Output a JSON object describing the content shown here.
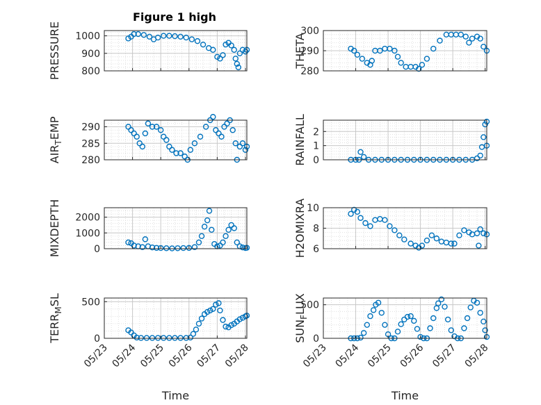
{
  "figure_title": "Figure 1 high",
  "xlabel": "Time",
  "x_ticks": [
    "05/23",
    "05/24",
    "05/25",
    "05/26",
    "05/27",
    "05/28"
  ],
  "chart_data": [
    {
      "type": "scatter",
      "ylabel": "PRESSURE",
      "yticks": [
        800,
        900,
        1000
      ],
      "ylim": [
        800,
        1030
      ],
      "grid": true,
      "minor_grid": true,
      "points": [
        [
          0.85,
          985
        ],
        [
          0.95,
          995
        ],
        [
          1.05,
          1010
        ],
        [
          1.2,
          1010
        ],
        [
          1.4,
          1005
        ],
        [
          1.6,
          995
        ],
        [
          1.75,
          980
        ],
        [
          1.9,
          990
        ],
        [
          2.1,
          1000
        ],
        [
          2.3,
          1000
        ],
        [
          2.5,
          998
        ],
        [
          2.7,
          995
        ],
        [
          2.9,
          990
        ],
        [
          3.1,
          980
        ],
        [
          3.3,
          970
        ],
        [
          3.5,
          950
        ],
        [
          3.7,
          930
        ],
        [
          3.85,
          920
        ],
        [
          4.0,
          880
        ],
        [
          4.1,
          870
        ],
        [
          4.2,
          890
        ],
        [
          4.3,
          950
        ],
        [
          4.4,
          960
        ],
        [
          4.5,
          945
        ],
        [
          4.6,
          920
        ],
        [
          4.65,
          870
        ],
        [
          4.7,
          840
        ],
        [
          4.75,
          820
        ],
        [
          4.8,
          900
        ],
        [
          4.9,
          920
        ],
        [
          5.0,
          910
        ],
        [
          5.05,
          920
        ]
      ]
    },
    {
      "type": "scatter",
      "ylabel": "THETA",
      "yticks": [
        280,
        290,
        300
      ],
      "ylim": [
        280,
        300
      ],
      "grid": true,
      "minor_grid": true,
      "points": [
        [
          0.85,
          291
        ],
        [
          0.95,
          290
        ],
        [
          1.05,
          288
        ],
        [
          1.2,
          286
        ],
        [
          1.35,
          284
        ],
        [
          1.45,
          283
        ],
        [
          1.5,
          285
        ],
        [
          1.6,
          290
        ],
        [
          1.75,
          290
        ],
        [
          1.9,
          291
        ],
        [
          2.05,
          291
        ],
        [
          2.2,
          290
        ],
        [
          2.3,
          287
        ],
        [
          2.4,
          284
        ],
        [
          2.55,
          282
        ],
        [
          2.7,
          282
        ],
        [
          2.85,
          282
        ],
        [
          2.95,
          281
        ],
        [
          3.05,
          283
        ],
        [
          3.2,
          286
        ],
        [
          3.4,
          291
        ],
        [
          3.6,
          295
        ],
        [
          3.8,
          298
        ],
        [
          3.95,
          298
        ],
        [
          4.1,
          298
        ],
        [
          4.25,
          298
        ],
        [
          4.4,
          297
        ],
        [
          4.5,
          294
        ],
        [
          4.6,
          296
        ],
        [
          4.75,
          297
        ],
        [
          4.85,
          296
        ],
        [
          4.95,
          292
        ],
        [
          5.05,
          290
        ]
      ]
    },
    {
      "type": "scatter",
      "ylabel": "AIR_TEMP",
      "ylabel_main": "AIR",
      "ylabel_sub": "T",
      "ylabel_rest": "EMP",
      "yticks": [
        280,
        285,
        290
      ],
      "ylim": [
        280,
        292
      ],
      "grid": true,
      "minor_grid": true,
      "points": [
        [
          0.85,
          290
        ],
        [
          0.95,
          289
        ],
        [
          1.05,
          288
        ],
        [
          1.15,
          287
        ],
        [
          1.25,
          285
        ],
        [
          1.35,
          284
        ],
        [
          1.45,
          288
        ],
        [
          1.55,
          291
        ],
        [
          1.7,
          290
        ],
        [
          1.85,
          290
        ],
        [
          2.0,
          289
        ],
        [
          2.1,
          287
        ],
        [
          2.2,
          286
        ],
        [
          2.3,
          284
        ],
        [
          2.4,
          283
        ],
        [
          2.55,
          282
        ],
        [
          2.7,
          282
        ],
        [
          2.85,
          281
        ],
        [
          2.95,
          280
        ],
        [
          3.05,
          283
        ],
        [
          3.2,
          285
        ],
        [
          3.4,
          287
        ],
        [
          3.6,
          290
        ],
        [
          3.75,
          292
        ],
        [
          3.85,
          293
        ],
        [
          3.95,
          289
        ],
        [
          4.05,
          288
        ],
        [
          4.15,
          287
        ],
        [
          4.25,
          290
        ],
        [
          4.35,
          291
        ],
        [
          4.45,
          292
        ],
        [
          4.55,
          289
        ],
        [
          4.65,
          285
        ],
        [
          4.7,
          280
        ],
        [
          4.8,
          284
        ],
        [
          4.9,
          285
        ],
        [
          5.0,
          283
        ],
        [
          5.05,
          284
        ]
      ]
    },
    {
      "type": "scatter",
      "ylabel": "RAINFALL",
      "yticks": [
        0,
        1,
        2
      ],
      "ylim": [
        0,
        2.8
      ],
      "grid": true,
      "minor_grid": true,
      "points": [
        [
          0.85,
          0
        ],
        [
          1.0,
          0
        ],
        [
          1.1,
          0
        ],
        [
          1.15,
          0.55
        ],
        [
          1.25,
          0.2
        ],
        [
          1.4,
          0
        ],
        [
          1.6,
          0
        ],
        [
          1.8,
          0
        ],
        [
          2.0,
          0
        ],
        [
          2.2,
          0
        ],
        [
          2.4,
          0
        ],
        [
          2.6,
          0
        ],
        [
          2.8,
          0
        ],
        [
          3.0,
          0
        ],
        [
          3.2,
          0
        ],
        [
          3.4,
          0
        ],
        [
          3.6,
          0
        ],
        [
          3.8,
          0
        ],
        [
          4.0,
          0
        ],
        [
          4.2,
          0
        ],
        [
          4.4,
          0
        ],
        [
          4.6,
          0
        ],
        [
          4.75,
          0.1
        ],
        [
          4.85,
          0.3
        ],
        [
          4.9,
          0.9
        ],
        [
          4.95,
          1.6
        ],
        [
          5.0,
          2.5
        ],
        [
          5.05,
          2.7
        ],
        [
          5.05,
          1.0
        ]
      ]
    },
    {
      "type": "scatter",
      "ylabel": "MIXDEPTH",
      "yticks": [
        0,
        1000,
        2000
      ],
      "ylim": [
        0,
        2600
      ],
      "grid": true,
      "minor_grid": true,
      "points": [
        [
          0.85,
          400
        ],
        [
          0.95,
          350
        ],
        [
          1.05,
          200
        ],
        [
          1.2,
          150
        ],
        [
          1.35,
          100
        ],
        [
          1.45,
          600
        ],
        [
          1.55,
          150
        ],
        [
          1.7,
          80
        ],
        [
          1.85,
          50
        ],
        [
          2.0,
          40
        ],
        [
          2.2,
          30
        ],
        [
          2.4,
          20
        ],
        [
          2.6,
          30
        ],
        [
          2.8,
          40
        ],
        [
          3.0,
          50
        ],
        [
          3.2,
          100
        ],
        [
          3.35,
          400
        ],
        [
          3.45,
          800
        ],
        [
          3.55,
          1400
        ],
        [
          3.65,
          1800
        ],
        [
          3.72,
          2400
        ],
        [
          3.8,
          1200
        ],
        [
          3.9,
          300
        ],
        [
          4.0,
          150
        ],
        [
          4.1,
          200
        ],
        [
          4.2,
          400
        ],
        [
          4.3,
          800
        ],
        [
          4.4,
          1200
        ],
        [
          4.5,
          1500
        ],
        [
          4.6,
          1300
        ],
        [
          4.7,
          400
        ],
        [
          4.8,
          150
        ],
        [
          4.9,
          80
        ],
        [
          5.0,
          40
        ],
        [
          5.05,
          60
        ]
      ]
    },
    {
      "type": "scatter",
      "ylabel": "H2OMIXRA",
      "yticks": [
        6,
        8,
        10
      ],
      "ylim": [
        6,
        10
      ],
      "grid": true,
      "minor_grid": true,
      "points": [
        [
          0.85,
          9.4
        ],
        [
          0.95,
          9.8
        ],
        [
          1.05,
          9.6
        ],
        [
          1.15,
          9.0
        ],
        [
          1.3,
          8.5
        ],
        [
          1.45,
          8.2
        ],
        [
          1.6,
          8.8
        ],
        [
          1.75,
          8.9
        ],
        [
          1.9,
          8.8
        ],
        [
          2.05,
          8.2
        ],
        [
          2.2,
          7.8
        ],
        [
          2.35,
          7.3
        ],
        [
          2.5,
          6.9
        ],
        [
          2.7,
          6.5
        ],
        [
          2.85,
          6.3
        ],
        [
          2.95,
          6.1
        ],
        [
          3.05,
          6.3
        ],
        [
          3.2,
          6.8
        ],
        [
          3.35,
          7.3
        ],
        [
          3.5,
          7.0
        ],
        [
          3.65,
          6.7
        ],
        [
          3.8,
          6.6
        ],
        [
          3.95,
          6.5
        ],
        [
          4.05,
          6.5
        ],
        [
          4.2,
          7.3
        ],
        [
          4.35,
          7.8
        ],
        [
          4.5,
          7.6
        ],
        [
          4.6,
          7.4
        ],
        [
          4.75,
          7.5
        ],
        [
          4.8,
          6.3
        ],
        [
          4.85,
          7.9
        ],
        [
          4.95,
          7.5
        ],
        [
          5.05,
          7.4
        ]
      ]
    },
    {
      "type": "scatter",
      "ylabel": "TERR_MSL",
      "ylabel_main": "TERR",
      "ylabel_sub": "M",
      "ylabel_rest": "SL",
      "yticks": [
        0,
        500
      ],
      "ylim": [
        0,
        550
      ],
      "grid": true,
      "minor_grid": true,
      "points": [
        [
          0.85,
          110
        ],
        [
          0.95,
          80
        ],
        [
          1.05,
          40
        ],
        [
          1.15,
          10
        ],
        [
          1.3,
          5
        ],
        [
          1.5,
          5
        ],
        [
          1.7,
          5
        ],
        [
          1.9,
          5
        ],
        [
          2.1,
          5
        ],
        [
          2.3,
          5
        ],
        [
          2.5,
          5
        ],
        [
          2.7,
          5
        ],
        [
          2.9,
          5
        ],
        [
          3.05,
          10
        ],
        [
          3.15,
          60
        ],
        [
          3.25,
          120
        ],
        [
          3.35,
          200
        ],
        [
          3.45,
          270
        ],
        [
          3.55,
          330
        ],
        [
          3.65,
          360
        ],
        [
          3.75,
          380
        ],
        [
          3.85,
          400
        ],
        [
          3.95,
          460
        ],
        [
          4.05,
          480
        ],
        [
          4.1,
          380
        ],
        [
          4.2,
          250
        ],
        [
          4.3,
          160
        ],
        [
          4.4,
          150
        ],
        [
          4.5,
          180
        ],
        [
          4.6,
          200
        ],
        [
          4.7,
          230
        ],
        [
          4.8,
          260
        ],
        [
          4.9,
          280
        ],
        [
          5.0,
          300
        ],
        [
          5.05,
          310
        ]
      ]
    },
    {
      "type": "scatter",
      "ylabel": "SUN_FLUX",
      "ylabel_main": "SUN",
      "ylabel_sub": "F",
      "ylabel_rest": "LUX",
      "yticks": [
        0,
        500
      ],
      "ylim": [
        0,
        600
      ],
      "grid": true,
      "minor_grid": true,
      "points": [
        [
          0.85,
          0
        ],
        [
          0.95,
          0
        ],
        [
          1.05,
          0
        ],
        [
          1.15,
          10
        ],
        [
          1.25,
          80
        ],
        [
          1.35,
          200
        ],
        [
          1.45,
          330
        ],
        [
          1.55,
          420
        ],
        [
          1.62,
          500
        ],
        [
          1.7,
          530
        ],
        [
          1.8,
          380
        ],
        [
          1.9,
          200
        ],
        [
          2.0,
          60
        ],
        [
          2.1,
          0
        ],
        [
          2.2,
          0
        ],
        [
          2.3,
          100
        ],
        [
          2.4,
          210
        ],
        [
          2.5,
          280
        ],
        [
          2.6,
          320
        ],
        [
          2.7,
          330
        ],
        [
          2.8,
          260
        ],
        [
          2.9,
          140
        ],
        [
          3.0,
          20
        ],
        [
          3.1,
          0
        ],
        [
          3.2,
          0
        ],
        [
          3.3,
          150
        ],
        [
          3.4,
          300
        ],
        [
          3.5,
          450
        ],
        [
          3.55,
          520
        ],
        [
          3.65,
          580
        ],
        [
          3.75,
          470
        ],
        [
          3.85,
          280
        ],
        [
          3.95,
          120
        ],
        [
          4.05,
          30
        ],
        [
          4.15,
          0
        ],
        [
          4.25,
          0
        ],
        [
          4.35,
          150
        ],
        [
          4.45,
          300
        ],
        [
          4.55,
          460
        ],
        [
          4.65,
          560
        ],
        [
          4.75,
          530
        ],
        [
          4.85,
          380
        ],
        [
          4.95,
          250
        ],
        [
          5.0,
          120
        ],
        [
          5.05,
          20
        ]
      ]
    }
  ]
}
